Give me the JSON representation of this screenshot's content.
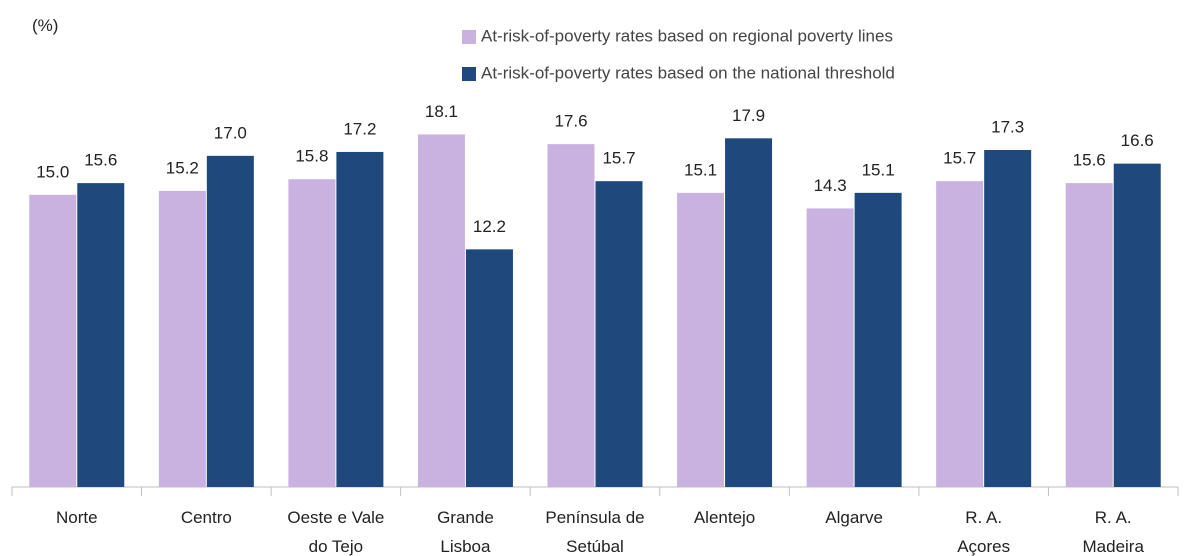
{
  "chart_data": {
    "type": "bar",
    "unit_label": "(%)",
    "categories": [
      "Norte",
      "Centro",
      "Oeste e Vale\ndo Tejo",
      "Grande\nLisboa",
      "Península de\nSetúbal",
      "Alentejo",
      "Algarve",
      "R. A.\nAçores",
      "R. A.\nMadeira"
    ],
    "series": [
      {
        "name": "At-risk-of-poverty rates based on regional poverty lines",
        "color": "#c9b1e0",
        "values": [
          15.0,
          15.2,
          15.8,
          18.1,
          17.6,
          15.1,
          14.3,
          15.7,
          15.6
        ],
        "value_labels": [
          "15.0",
          "15.2",
          "15.8",
          "18.1",
          "17.6",
          "15.1",
          "14.3",
          "15.7",
          "15.6"
        ]
      },
      {
        "name": "At-risk-of-poverty rates based on the national threshold",
        "color": "#1f497d",
        "values": [
          15.6,
          17.0,
          17.2,
          12.2,
          15.7,
          17.9,
          15.1,
          17.3,
          16.6
        ],
        "value_labels": [
          "15.6",
          "17.0",
          "17.2",
          "12.2",
          "15.7",
          "17.9",
          "15.1",
          "17.3",
          "16.6"
        ]
      }
    ],
    "ylim": [
      0,
      25
    ],
    "legend": "top"
  }
}
